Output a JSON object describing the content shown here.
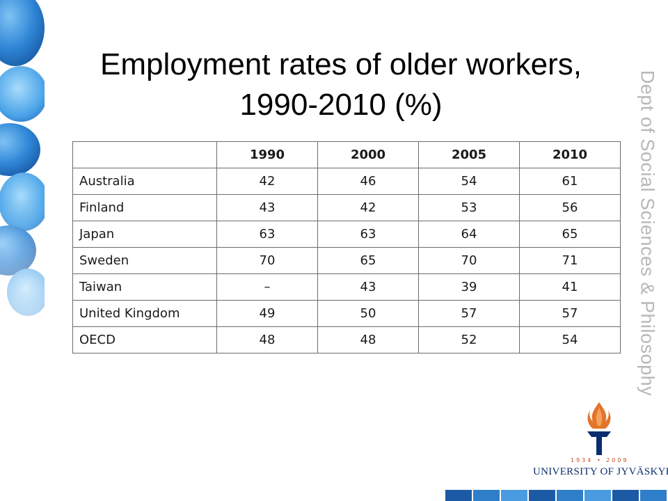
{
  "slide": {
    "title_line1": "Employment rates of older workers,",
    "title_line2": "1990-2010 (%)",
    "side_text": "Dept of Social Sciences & Philosophy"
  },
  "table": {
    "columns": [
      "1990",
      "2000",
      "2005",
      "2010"
    ],
    "rows": [
      {
        "country": "Australia",
        "values": [
          "42",
          "46",
          "54",
          "61"
        ]
      },
      {
        "country": "Finland",
        "values": [
          "43",
          "42",
          "53",
          "56"
        ]
      },
      {
        "country": "Japan",
        "values": [
          "63",
          "63",
          "64",
          "65"
        ]
      },
      {
        "country": "Sweden",
        "values": [
          "70",
          "65",
          "70",
          "71"
        ]
      },
      {
        "country": "Taiwan",
        "values": [
          "–",
          "43",
          "39",
          "41"
        ]
      },
      {
        "country": "United Kingdom",
        "values": [
          "49",
          "50",
          "57",
          "57"
        ]
      },
      {
        "country": "OECD",
        "values": [
          "48",
          "48",
          "52",
          "54"
        ]
      }
    ]
  },
  "logo": {
    "years": "1934 • 2009",
    "name": "UNIVERSITY OF JYVÄSKYLÄ"
  },
  "colors": {
    "accent_blue": "#0a2d6e",
    "logo_orange": "#e2742c",
    "side_text": "#b7b7b7"
  }
}
